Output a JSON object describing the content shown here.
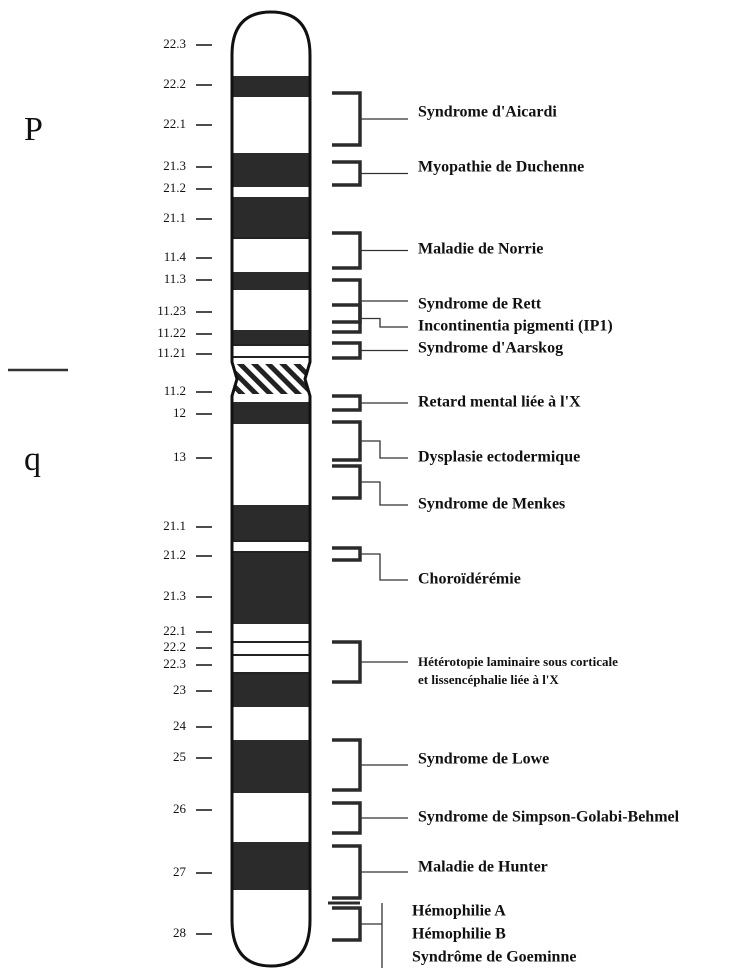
{
  "arms": [
    "P",
    "q"
  ],
  "bands": [
    "22.3",
    "22.2",
    "22.1",
    "21.3",
    "21.2",
    "21.1",
    "11.4",
    "11.3",
    "11.23",
    "11.22",
    "11.21",
    "11.2",
    "12",
    "13",
    "21.1",
    "21.2",
    "21.3",
    "22.1",
    "22.2",
    "22.3",
    "23",
    "24",
    "25",
    "26",
    "27",
    "28"
  ],
  "diseases": [
    "Syndrome d'Aicardi",
    "Myopathie de Duchenne",
    "Maladie de Norrie",
    "Syndrome de Rett",
    "Incontinentia pigmenti (IP1)",
    "Syndrome d'Aarskog",
    "Retard mental liée à l'X",
    "Dysplasie ectodermique",
    "Syndrome de Menkes",
    "Choroïdérémie",
    "Hétérotopie laminaire sous corticale",
    "et lissencéphalie liée à l'X",
    "Syndrome de  Lowe",
    "Syndrome de Simpson-Golabi-Behmel",
    "Maladie de Hunter",
    "Hémophilie A",
    "Hémophilie B",
    "Syndrôme de Goeminne"
  ]
}
